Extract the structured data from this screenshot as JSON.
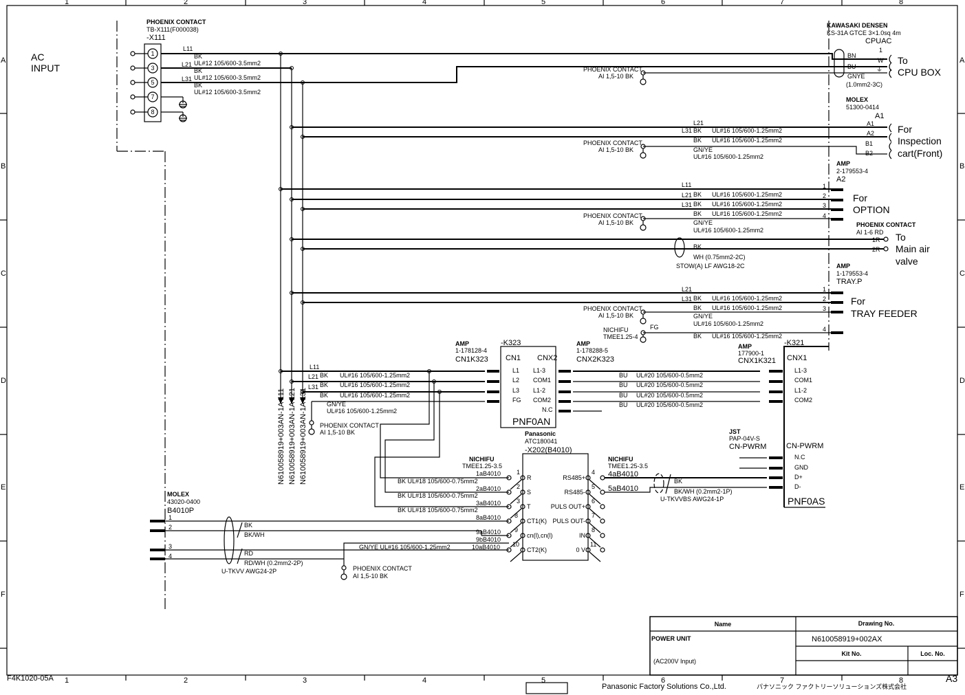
{
  "frame": {
    "cols": [
      "1",
      "2",
      "3",
      "4",
      "5",
      "6",
      "7",
      "8"
    ],
    "rows": [
      "A",
      "B",
      "C",
      "D",
      "E",
      "F"
    ],
    "sheet_code": "F4K1020-05A",
    "size": "A3",
    "company": "Panasonic Factory Solutions Co.,Ltd.",
    "company_jp": "パナソニック ファクトリーソリューションズ株式会社"
  },
  "input": {
    "title1": "AC",
    "title2": "INPUT",
    "maker": "PHOENIX CONTACT",
    "part": "TB-X111(F000038)",
    "ref": "-X111",
    "terminals": [
      "1",
      "3",
      "5",
      "7",
      "8"
    ],
    "L11": "L11",
    "L21": "L21",
    "L31": "L31",
    "bk": "BK",
    "wire": "UL#12 105/600-3.5mm2"
  },
  "cpu": {
    "maker": "KAWASAKI DENSEN",
    "cable": "KS-31A GTCE 3×1.0sq 4m",
    "ref": "CPUAC",
    "pins": [
      "1",
      "W",
      "⏚"
    ],
    "colors": [
      "BN",
      "BU",
      "GNYE"
    ],
    "spec": "(1.0mm2-3C)",
    "dest1": "To",
    "dest2": "CPU BOX"
  },
  "phoenix": {
    "maker": "PHOENIX CONTACT",
    "part": "AI 1,5-10 BK",
    "part_rd": "AI 1-6 RD"
  },
  "a1": {
    "maker": "MOLEX",
    "part": "51300-0414",
    "ref": "A1",
    "pins": [
      "A1",
      "A2",
      "B1",
      "B2"
    ],
    "dest": [
      "For",
      "Inspection",
      "cart(Front)"
    ]
  },
  "a2": {
    "maker": "AMP",
    "part": "2-179553-4",
    "ref": "A2",
    "pins": [
      "1",
      "2",
      "3",
      "4"
    ],
    "dest": [
      "For",
      "OPTION"
    ]
  },
  "air": {
    "pins": [
      "1R",
      "2R"
    ],
    "dest": [
      "To",
      "Main air",
      "valve"
    ],
    "bk": "BK",
    "wh": "WH (0.75mm2-2C)",
    "cable": "STOW(A) LF AWG18-2C"
  },
  "tray": {
    "maker": "AMP",
    "part": "1-179553-4",
    "ref": "TRAY.P",
    "pins": [
      "1",
      "2",
      "3",
      "4"
    ],
    "dest": [
      "For",
      "TRAY FEEDER"
    ],
    "fg": "FG",
    "nichifu": "NICHIFU",
    "nichifu_part": "TMEE1.25-4"
  },
  "wires": {
    "bk": "BK",
    "gnye": "GN/YE",
    "w125": "UL#16 105/600-1.25mm2",
    "bu": "BU",
    "w05": "UL#20 105/600-0.5mm2",
    "w075": "BK UL#18 105/600-0.75mm2",
    "gn_w": "GN/YE UL#16 105/600-1.25mm2"
  },
  "bus": {
    "labels": [
      "N610058919+003AN-1A  L11",
      "N610058919+003AN-1A  L21",
      "N610058919+003AN-1A  L31"
    ]
  },
  "k323": {
    "ref": "-K323",
    "cn1": "CN1",
    "cnx2": "CNX2",
    "name": "PNF0AN",
    "cn1_pins": [
      "L1",
      "L2",
      "L3",
      "FG"
    ],
    "cnx2_pins": [
      "L1-3",
      "COM1",
      "L1-2",
      "COM2",
      "N.C"
    ],
    "amp1": "AMP",
    "amp1_part": "1-178128-4",
    "amp1_ref": "CN1K323",
    "amp2": "AMP",
    "amp2_part": "1-178288-5",
    "amp2_ref": "CNX2K323"
  },
  "k321": {
    "ref": "-K321",
    "cnx1": "CNX1",
    "cnx1_pins": [
      "L1-3",
      "COM1",
      "L1-2",
      "COM2"
    ],
    "amp": "AMP",
    "amp_part": "177900-1",
    "amp_ref": "CNX1K321",
    "pwrm": "CN-PWRM",
    "pwrm_pins": [
      "N.C",
      "GND",
      "D+",
      "D-"
    ],
    "name": "PNF0AS",
    "jst": "JST",
    "jst_part": "PAP-04V-S",
    "jst_ref": "CN-PWRM"
  },
  "x202": {
    "maker": "Panasonic",
    "part": "ATC180041",
    "ref": "-X202(B4010)",
    "left": [
      "R",
      "S",
      "T",
      "CT1(K)",
      "cn(l),cn(l)",
      "CT2(K)"
    ],
    "left_nums": [
      "1",
      "2",
      "3",
      "8",
      "9",
      "10"
    ],
    "right": [
      "RS485+",
      "RS485-",
      "PULS OUT+",
      "PULS OUT-",
      "IN",
      "0 V"
    ],
    "right_nums": [
      "4",
      "5",
      "6",
      "7",
      "8",
      "11"
    ],
    "nichifu": "NICHIFU",
    "nichifu_part": "TMEE1.25-3.5",
    "terms": [
      "1aB4010",
      "2aB4010",
      "3aB4010",
      "8aB4010",
      "9aB4010",
      "9bB4010",
      "10aB4010",
      "4aB4010",
      "5aB4010"
    ],
    "rs_bk": "BK",
    "rs_bkwh": "BK/WH (0.2mm2-1P)",
    "rs_cable": "U-TKVVBS AWG24-1P"
  },
  "b4010p": {
    "maker": "MOLEX",
    "part": "43020-0400",
    "ref": "B4010P",
    "pins": [
      "1",
      "2",
      "3",
      "4"
    ],
    "bk": "BK",
    "bkwh": "BK/WH",
    "rd": "RD",
    "rdwh": "RD/WH (0.2mm2-2P)",
    "cable": "U-TKVV AWG24-2P"
  },
  "title_block": {
    "name_header": "Name",
    "drawing_header": "Drawing No.",
    "name": "POWER UNIT",
    "subname": "(AC200V Input)",
    "drawing_no": "N610058919+002AX",
    "kit_header": "Kit No.",
    "loc_header": "Loc. No.",
    "kit_no": "",
    "loc_no": ""
  }
}
